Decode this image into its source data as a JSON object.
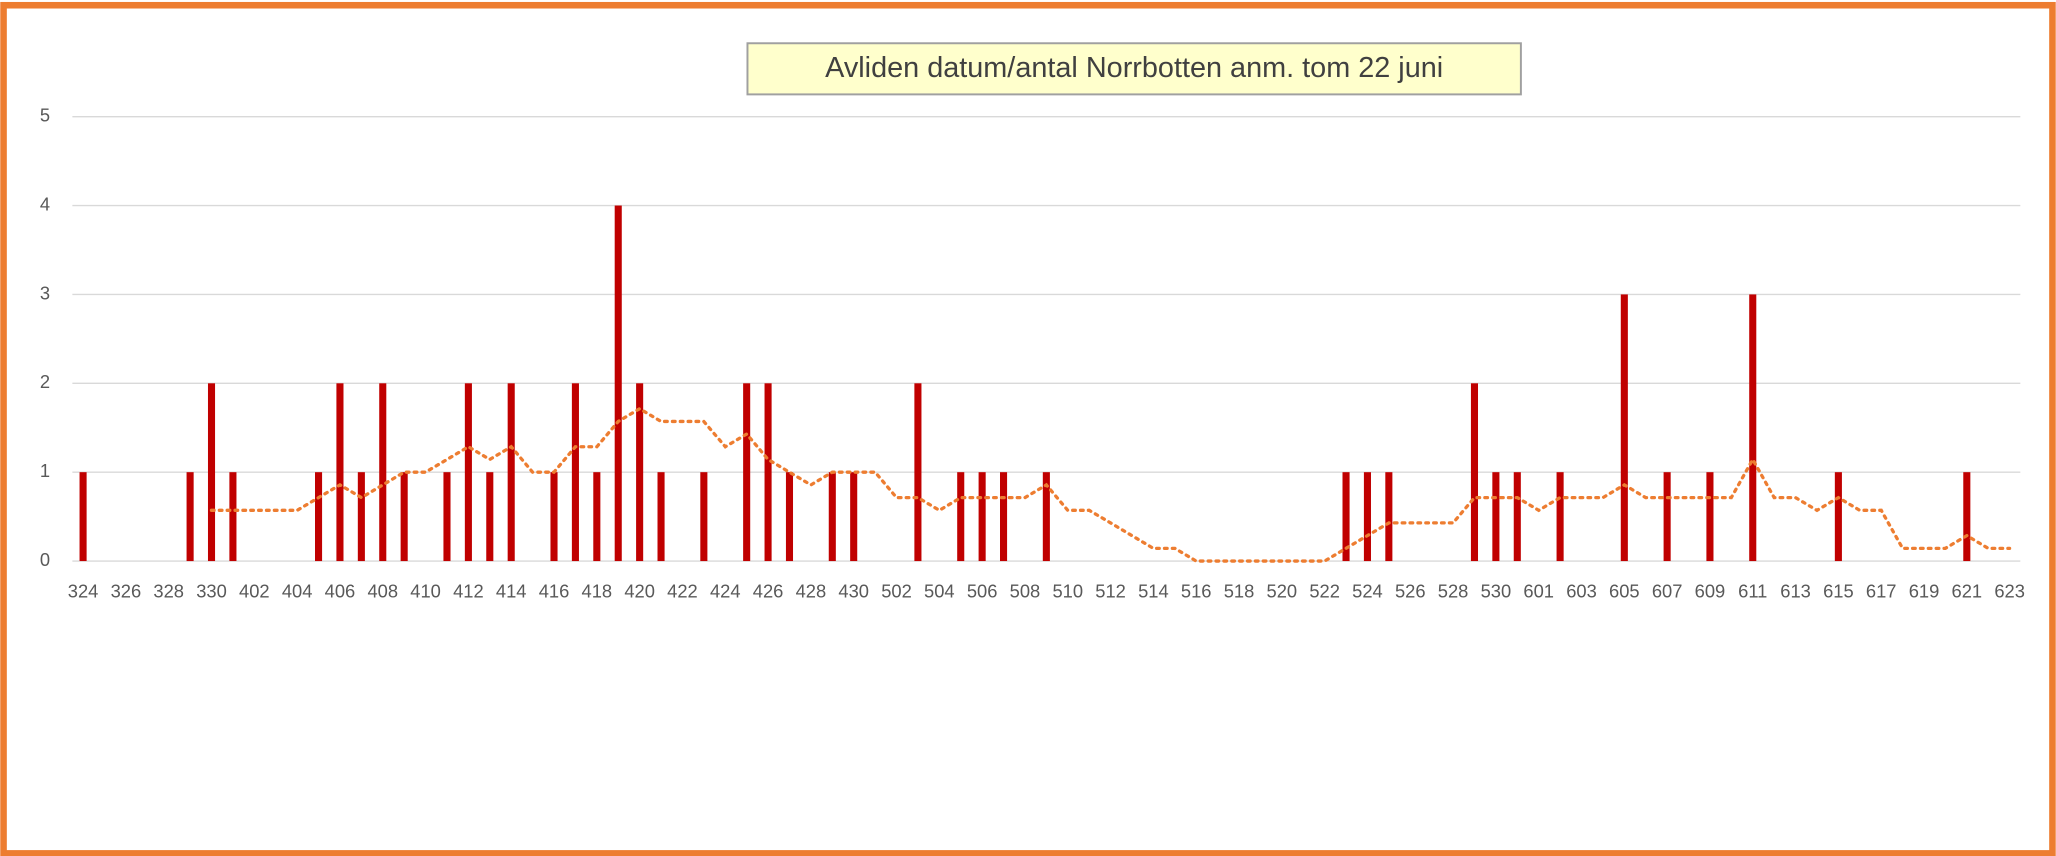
{
  "chart_data": {
    "type": "bar",
    "title": "Avliden datum/antal Norrbotten anm. tom 22 juni",
    "categories": [
      "324",
      null,
      "326",
      null,
      "328",
      null,
      "330",
      null,
      "402",
      null,
      "404",
      null,
      "406",
      null,
      "408",
      null,
      "410",
      null,
      "412",
      null,
      "414",
      null,
      "416",
      null,
      "418",
      null,
      "420",
      null,
      "422",
      null,
      "424",
      null,
      "426",
      null,
      "428",
      null,
      "430",
      null,
      "502",
      null,
      "504",
      null,
      "506",
      null,
      "508",
      null,
      "510",
      null,
      "512",
      null,
      "514",
      null,
      "516",
      null,
      "518",
      null,
      "520",
      null,
      "522",
      null,
      "524",
      null,
      "526",
      null,
      "528",
      null,
      "530",
      null,
      "601",
      null,
      "603",
      null,
      "605",
      null,
      "607",
      null,
      "609",
      null,
      "611",
      null,
      "613",
      null,
      "615",
      null,
      "617",
      null,
      "619",
      null,
      "621",
      null,
      "623"
    ],
    "values": [
      1,
      0,
      0,
      0,
      0,
      1,
      2,
      1,
      0,
      0,
      0,
      1,
      2,
      1,
      2,
      1,
      0,
      1,
      2,
      1,
      2,
      0,
      1,
      2,
      1,
      4,
      2,
      1,
      0,
      1,
      0,
      2,
      2,
      1,
      0,
      1,
      1,
      0,
      0,
      2,
      0,
      1,
      1,
      1,
      0,
      1,
      0,
      0,
      0,
      0,
      0,
      0,
      0,
      0,
      0,
      0,
      0,
      0,
      0,
      1,
      1,
      1,
      0,
      0,
      0,
      2,
      1,
      1,
      0,
      1,
      0,
      0,
      3,
      0,
      1,
      0,
      1,
      0,
      3,
      0,
      0,
      0,
      1,
      0,
      0,
      0,
      0,
      0,
      1,
      0,
      0
    ],
    "color": "#c00000",
    "trendline": {
      "type": "moving_average",
      "period": 7,
      "color": "#ed7d31"
    },
    "ylim": [
      0,
      5
    ],
    "yticks": [
      0,
      1,
      2,
      3,
      4,
      5
    ],
    "grid": true
  }
}
